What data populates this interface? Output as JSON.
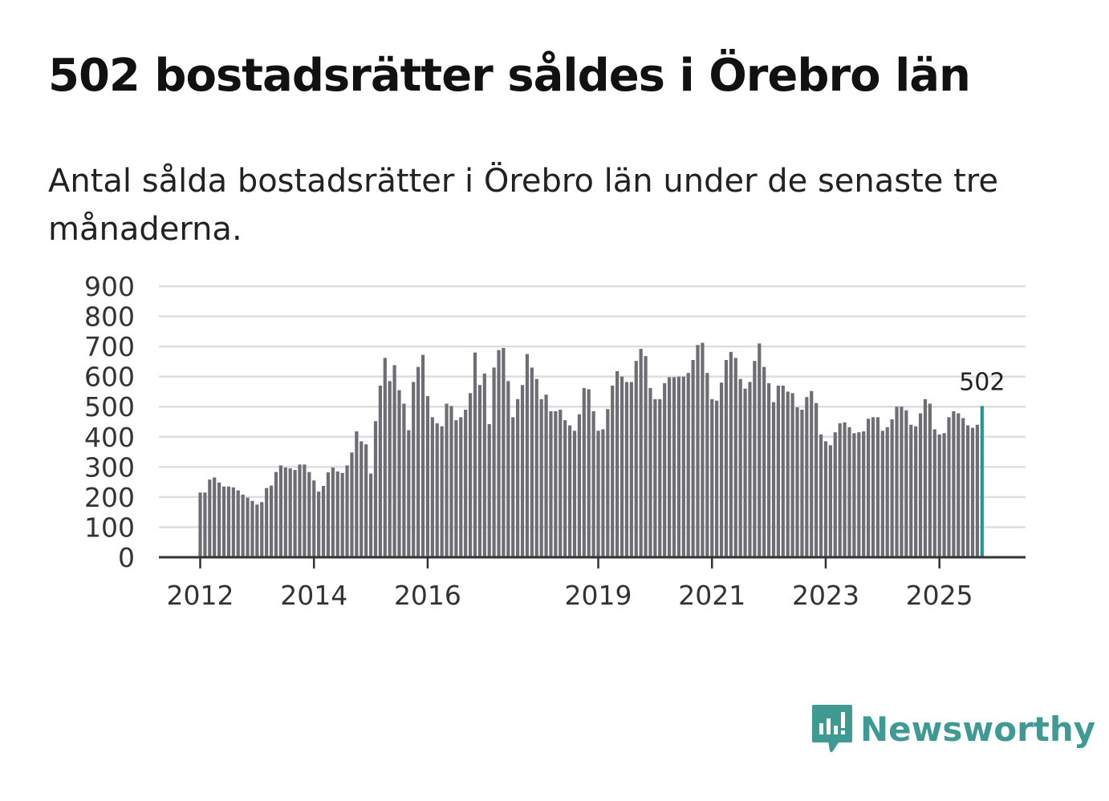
{
  "header": {
    "title": "502 bostadsrätter såldes i Örebro län",
    "subtitle": "Antal sålda bostadsrätter i Örebro län under de senaste tre månaderna."
  },
  "brand": {
    "name": "Newsworthy"
  },
  "colors": {
    "bar": "#6e6d73",
    "highlight": "#1e9a91",
    "grid": "#dddddd",
    "axis": "#333333",
    "logo": "#3e9a92"
  },
  "chart_data": {
    "type": "bar",
    "title": "502 bostadsrätter såldes i Örebro län",
    "xlabel": "",
    "ylabel": "",
    "ylim": [
      0,
      900
    ],
    "yticks": [
      "0",
      "100",
      "200",
      "300",
      "400",
      "500",
      "600",
      "700",
      "800",
      "900"
    ],
    "xticks": [
      {
        "label": "2012",
        "index": 0
      },
      {
        "label": "2014",
        "index": 24
      },
      {
        "label": "2016",
        "index": 48
      },
      {
        "label": "2019",
        "index": 84
      },
      {
        "label": "2021",
        "index": 108
      },
      {
        "label": "2023",
        "index": 132
      },
      {
        "label": "2025",
        "index": 156
      }
    ],
    "highlight_label": "502",
    "highlight_index": 165,
    "values": [
      215,
      215,
      258,
      265,
      248,
      235,
      235,
      232,
      222,
      208,
      198,
      187,
      175,
      183,
      230,
      238,
      283,
      305,
      298,
      295,
      290,
      308,
      308,
      283,
      255,
      218,
      237,
      282,
      298,
      285,
      280,
      305,
      348,
      418,
      385,
      375,
      278,
      452,
      570,
      662,
      585,
      638,
      555,
      510,
      422,
      582,
      632,
      672,
      535,
      465,
      445,
      435,
      510,
      502,
      455,
      465,
      490,
      545,
      680,
      572,
      610,
      442,
      630,
      688,
      695,
      585,
      465,
      525,
      572,
      675,
      630,
      592,
      525,
      540,
      485,
      485,
      490,
      455,
      438,
      420,
      475,
      562,
      558,
      485,
      420,
      425,
      492,
      570,
      618,
      600,
      582,
      582,
      652,
      692,
      668,
      562,
      525,
      525,
      578,
      598,
      598,
      600,
      600,
      612,
      655,
      705,
      712,
      612,
      525,
      520,
      580,
      655,
      682,
      662,
      592,
      560,
      582,
      652,
      710,
      632,
      578,
      515,
      570,
      570,
      550,
      545,
      498,
      490,
      532,
      552,
      512,
      408,
      385,
      372,
      415,
      445,
      448,
      432,
      412,
      415,
      418,
      460,
      465,
      465,
      420,
      432,
      458,
      500,
      500,
      488,
      440,
      435,
      478,
      525,
      510,
      425,
      408,
      412,
      465,
      485,
      478,
      462,
      438,
      430,
      440,
      502
    ]
  }
}
